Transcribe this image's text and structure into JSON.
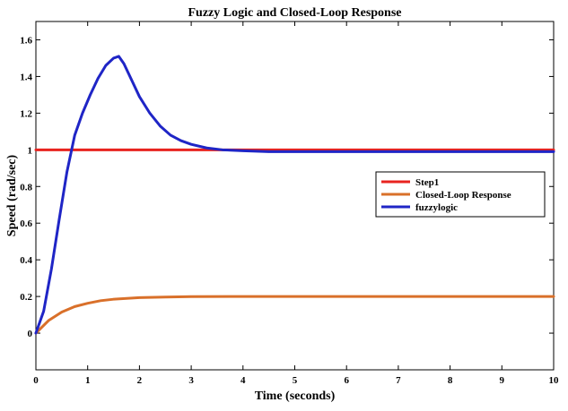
{
  "chart_data": {
    "type": "line",
    "title": "Fuzzy Logic and Closed-Loop Response",
    "xlabel": "Time (seconds)",
    "ylabel": "Speed (rad/sec)",
    "xlim": [
      0,
      10
    ],
    "ylim": [
      -0.2,
      1.7
    ],
    "xticks": [
      0,
      1,
      2,
      3,
      4,
      5,
      6,
      7,
      8,
      9,
      10
    ],
    "yticks": [
      0,
      0.2,
      0.4,
      0.6,
      0.8,
      1,
      1.2,
      1.4,
      1.6
    ],
    "ytick_labels": [
      "0",
      "0.2",
      "0.4",
      "0.6",
      "0.8",
      "1",
      "1.2",
      "1.4",
      "1.6"
    ],
    "grid": false,
    "legend_position": "right",
    "series": [
      {
        "name": "Step1",
        "color": "#e8231f",
        "x": [
          0,
          10
        ],
        "y": [
          1,
          1
        ]
      },
      {
        "name": "Closed-Loop Response",
        "color": "#d9702a",
        "x": [
          0,
          0.25,
          0.5,
          0.75,
          1,
          1.25,
          1.5,
          2,
          2.5,
          3,
          4,
          5,
          6,
          7,
          8,
          9,
          10
        ],
        "y": [
          0,
          0.07,
          0.115,
          0.145,
          0.163,
          0.177,
          0.185,
          0.194,
          0.197,
          0.199,
          0.2,
          0.2,
          0.2,
          0.2,
          0.2,
          0.2,
          0.2
        ]
      },
      {
        "name": "fuzzylogic",
        "color": "#1f25c6",
        "x": [
          0,
          0.15,
          0.3,
          0.45,
          0.6,
          0.75,
          0.9,
          1.05,
          1.2,
          1.35,
          1.5,
          1.6,
          1.7,
          1.85,
          2,
          2.2,
          2.4,
          2.6,
          2.8,
          3,
          3.3,
          3.6,
          4,
          4.5,
          5,
          6,
          7,
          8,
          9,
          10
        ],
        "y": [
          0,
          0.12,
          0.35,
          0.62,
          0.88,
          1.08,
          1.2,
          1.3,
          1.39,
          1.46,
          1.5,
          1.51,
          1.47,
          1.38,
          1.29,
          1.2,
          1.13,
          1.08,
          1.05,
          1.03,
          1.01,
          1.0,
          0.995,
          0.99,
          0.99,
          0.99,
          0.99,
          0.99,
          0.99,
          0.99
        ]
      }
    ]
  }
}
